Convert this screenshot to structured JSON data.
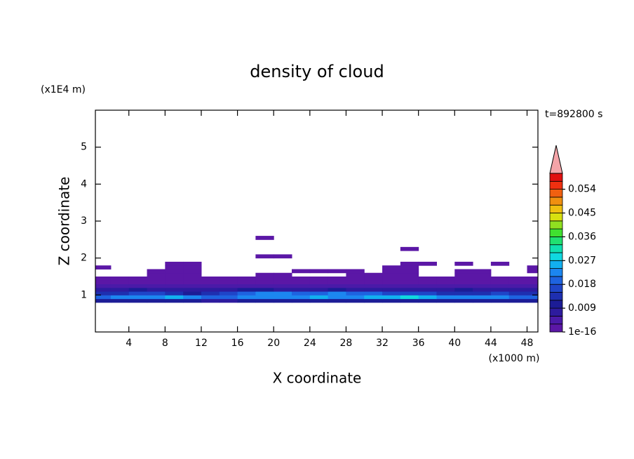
{
  "chart_data": {
    "type": "contour",
    "title": "density of cloud",
    "x_label": "X coordinate",
    "y_label": "Z coordinate",
    "x_unit": "(x1000 m)",
    "y_unit": "(x1E4 m)",
    "time_label": "t=892800 s",
    "xlim": [
      0.3,
      49.2
    ],
    "xticks": [
      4,
      8,
      12,
      16,
      20,
      24,
      28,
      32,
      36,
      40,
      44,
      48
    ],
    "ylim": [
      0,
      6
    ],
    "yticks": [
      1,
      2,
      3,
      4,
      5
    ],
    "field": {
      "x_edges": [
        0,
        2,
        4,
        6,
        8,
        10,
        12,
        14,
        16,
        18,
        20,
        22,
        24,
        26,
        28,
        30,
        32,
        34,
        36,
        38,
        40,
        42,
        44,
        46,
        48,
        50
      ],
      "z_edges": [
        0.8,
        0.9,
        1.0,
        1.1,
        1.2,
        1.3,
        1.4,
        1.5,
        1.6,
        1.7,
        1.8,
        1.9,
        2.0,
        2.1,
        2.2,
        2.3,
        2.5,
        2.6
      ],
      "values": [
        [
          0.009,
          0.009,
          0.009,
          0.009,
          0.009,
          0.009,
          0.006,
          0.006,
          0.009,
          0.009,
          0.009,
          0.009,
          0.009,
          0.009,
          0.009,
          0.009,
          0.009,
          0.009,
          0.009,
          0.009,
          0.009,
          0.009,
          0.009,
          0.009,
          0.009
        ],
        [
          0.018,
          0.021,
          0.021,
          0.021,
          0.024,
          0.021,
          0.018,
          0.018,
          0.021,
          0.021,
          0.021,
          0.021,
          0.024,
          0.021,
          0.021,
          0.024,
          0.024,
          0.027,
          0.024,
          0.021,
          0.021,
          0.021,
          0.021,
          0.018,
          0.018
        ],
        [
          0.012,
          0.012,
          0.015,
          0.015,
          0.012,
          0.009,
          0.012,
          0.015,
          0.018,
          0.021,
          0.021,
          0.018,
          0.018,
          0.021,
          0.018,
          0.018,
          0.015,
          0.015,
          0.015,
          0.012,
          0.012,
          0.012,
          0.015,
          0.012,
          0.012
        ],
        [
          0.006,
          0.006,
          0.009,
          0.006,
          0.006,
          0.006,
          0.006,
          0.006,
          0.009,
          0.009,
          0.006,
          0.006,
          0.006,
          0.009,
          0.006,
          0.006,
          0.006,
          0.006,
          0.006,
          0.006,
          0.009,
          0.006,
          0.006,
          0.006,
          0.006
        ],
        [
          0.004,
          0.003,
          0.003,
          0.004,
          0.003,
          0.003,
          0.004,
          0.004,
          0.003,
          0.003,
          0.004,
          0.003,
          0.003,
          0.003,
          0.004,
          0.003,
          0.003,
          0.004,
          0.003,
          0.003,
          0.003,
          0.004,
          0.003,
          0.003,
          0.004
        ],
        [
          0.002,
          0.002,
          0.002,
          0.002,
          0.002,
          0.002,
          0.002,
          0.002,
          0.002,
          0.002,
          0.002,
          0.002,
          0.002,
          0.002,
          0.002,
          0.002,
          0.002,
          0.002,
          0.002,
          0.002,
          0.002,
          0.002,
          0.002,
          0.002,
          0.002
        ],
        [
          0.001,
          0.001,
          0.001,
          0.001,
          0.001,
          0.001,
          0.001,
          0.001,
          0.001,
          0.001,
          0.001,
          0.001,
          0.001,
          0.001,
          0.001,
          0.001,
          0.001,
          0.001,
          0.001,
          0.001,
          0.001,
          0.001,
          0.001,
          0.001,
          0.001
        ],
        [
          null,
          null,
          null,
          0.001,
          0.001,
          0.001,
          null,
          null,
          null,
          0.001,
          0.001,
          null,
          null,
          null,
          0.001,
          0.001,
          0.001,
          0.001,
          null,
          null,
          0.001,
          0.001,
          null,
          null,
          null
        ],
        [
          null,
          null,
          null,
          0.001,
          0.001,
          0.001,
          null,
          null,
          null,
          null,
          null,
          0.001,
          0.001,
          0.001,
          0.001,
          null,
          0.001,
          0.001,
          null,
          null,
          0.001,
          0.001,
          null,
          null,
          0.001
        ],
        [
          0.001,
          null,
          null,
          null,
          0.001,
          0.001,
          null,
          null,
          null,
          null,
          null,
          null,
          null,
          null,
          null,
          null,
          0.001,
          0.001,
          null,
          null,
          null,
          null,
          null,
          null,
          0.001
        ],
        [
          null,
          null,
          null,
          null,
          0.001,
          0.001,
          null,
          null,
          null,
          null,
          null,
          null,
          null,
          null,
          null,
          null,
          null,
          0.001,
          0.001,
          null,
          0.001,
          null,
          0.001,
          null,
          null
        ],
        [
          null,
          null,
          null,
          null,
          null,
          null,
          null,
          null,
          null,
          null,
          null,
          null,
          null,
          null,
          null,
          null,
          null,
          null,
          null,
          null,
          null,
          null,
          null,
          null,
          null
        ],
        [
          null,
          null,
          null,
          null,
          null,
          null,
          null,
          null,
          null,
          0.001,
          0.001,
          null,
          null,
          null,
          null,
          null,
          null,
          null,
          null,
          null,
          null,
          null,
          null,
          null,
          null
        ],
        [
          null,
          null,
          null,
          null,
          null,
          null,
          null,
          null,
          null,
          null,
          null,
          null,
          null,
          null,
          null,
          null,
          null,
          null,
          null,
          null,
          null,
          null,
          null,
          null,
          null
        ],
        [
          null,
          null,
          null,
          null,
          null,
          null,
          null,
          null,
          null,
          null,
          null,
          null,
          null,
          null,
          null,
          null,
          null,
          0.001,
          null,
          null,
          null,
          null,
          null,
          null,
          null
        ],
        [
          null,
          null,
          null,
          null,
          null,
          null,
          null,
          null,
          null,
          null,
          null,
          null,
          null,
          null,
          null,
          null,
          null,
          null,
          null,
          null,
          null,
          null,
          null,
          null,
          null
        ],
        [
          null,
          null,
          null,
          null,
          null,
          null,
          null,
          null,
          null,
          0.001,
          null,
          null,
          null,
          null,
          null,
          null,
          null,
          null,
          null,
          null,
          null,
          null,
          null,
          null,
          null
        ]
      ]
    },
    "colorbar": {
      "levels": [
        1e-16,
        0.003,
        0.006,
        0.009,
        0.012,
        0.015,
        0.018,
        0.021,
        0.024,
        0.027,
        0.03,
        0.033,
        0.036,
        0.039,
        0.042,
        0.045,
        0.048,
        0.051,
        0.054,
        0.057,
        0.06
      ],
      "colors": [
        "#5b17a6",
        "#4a1aa8",
        "#2d1b9e",
        "#1c1c96",
        "#1e2fb0",
        "#1f45c8",
        "#1e63e0",
        "#1c86f0",
        "#12b0f0",
        "#10d8e0",
        "#10e0b0",
        "#20e070",
        "#40e030",
        "#90e020",
        "#d8e010",
        "#f0c010",
        "#f09010",
        "#f06010",
        "#f03010",
        "#e01010"
      ],
      "extend_color": "#f4a4a8",
      "ticks": [
        1e-16,
        0.009,
        0.018,
        0.027,
        0.036,
        0.045,
        0.054
      ]
    }
  }
}
